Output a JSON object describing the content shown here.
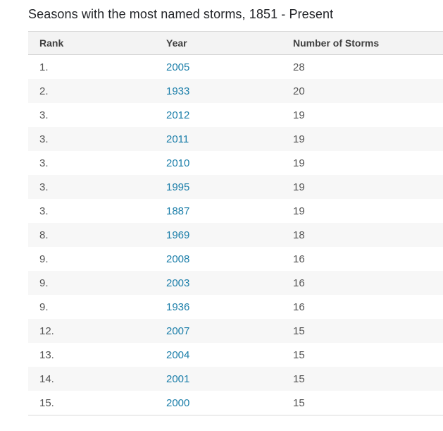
{
  "page": {
    "title": "Seasons with the most named storms, 1851 - Present"
  },
  "table": {
    "columns": [
      "Rank",
      "Year",
      "Number of Storms"
    ],
    "rows": [
      {
        "rank": "1.",
        "year": "2005",
        "storms": "28"
      },
      {
        "rank": "2.",
        "year": "1933",
        "storms": "20"
      },
      {
        "rank": "3.",
        "year": "2012",
        "storms": "19"
      },
      {
        "rank": "3.",
        "year": "2011",
        "storms": "19"
      },
      {
        "rank": "3.",
        "year": "2010",
        "storms": "19"
      },
      {
        "rank": "3.",
        "year": "1995",
        "storms": "19"
      },
      {
        "rank": "3.",
        "year": "1887",
        "storms": "19"
      },
      {
        "rank": "8.",
        "year": "1969",
        "storms": "18"
      },
      {
        "rank": "9.",
        "year": "2008",
        "storms": "16"
      },
      {
        "rank": "9.",
        "year": "2003",
        "storms": "16"
      },
      {
        "rank": "9.",
        "year": "1936",
        "storms": "16"
      },
      {
        "rank": "12.",
        "year": "2007",
        "storms": "15"
      },
      {
        "rank": "13.",
        "year": "2004",
        "storms": "15"
      },
      {
        "rank": "14.",
        "year": "2001",
        "storms": "15"
      },
      {
        "rank": "15.",
        "year": "2000",
        "storms": "15"
      }
    ]
  },
  "colors": {
    "year_link": "#1b7ea9",
    "title_text": "#222428",
    "header_text": "#404040",
    "body_text": "#555555",
    "header_bg": "#f3f3f3",
    "alt_row_bg": "#f7f7f7",
    "border": "#d9d9d9"
  },
  "chart_data": {
    "type": "table",
    "title": "Seasons with the most named storms, 1851 - Present",
    "columns": [
      "Rank",
      "Year",
      "Number of Storms"
    ],
    "rows": [
      [
        "1.",
        "2005",
        28
      ],
      [
        "2.",
        "1933",
        20
      ],
      [
        "3.",
        "2012",
        19
      ],
      [
        "3.",
        "2011",
        19
      ],
      [
        "3.",
        "2010",
        19
      ],
      [
        "3.",
        "1995",
        19
      ],
      [
        "3.",
        "1887",
        19
      ],
      [
        "8.",
        "1969",
        18
      ],
      [
        "9.",
        "2008",
        16
      ],
      [
        "9.",
        "2003",
        16
      ],
      [
        "9.",
        "1936",
        16
      ],
      [
        "12.",
        "2007",
        15
      ],
      [
        "13.",
        "2004",
        15
      ],
      [
        "14.",
        "2001",
        15
      ],
      [
        "15.",
        "2000",
        15
      ]
    ],
    "notes": "Zebra-striped HTML table; Year column rendered as hyperlinks"
  }
}
